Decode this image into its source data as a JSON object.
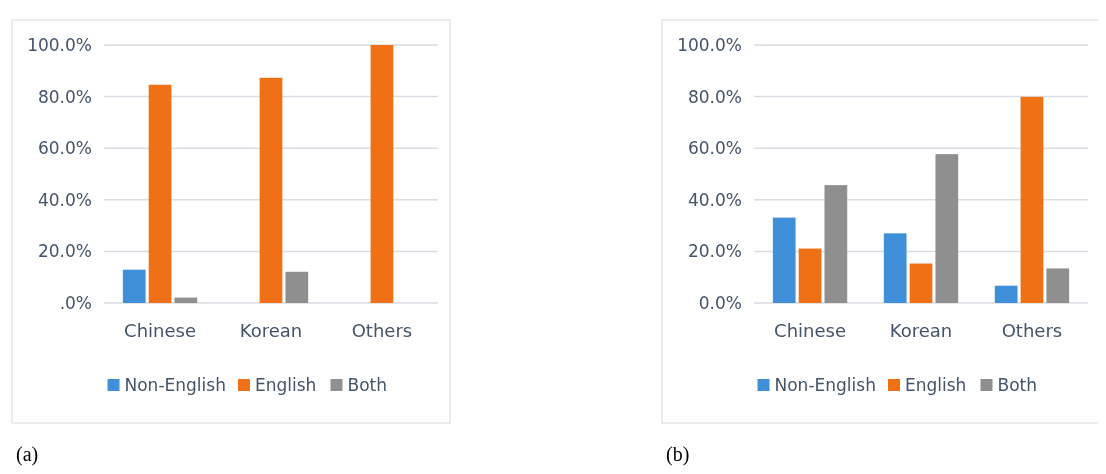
{
  "chart_data": [
    {
      "type": "bar",
      "categories": [
        "Chinese",
        "Korean",
        "Others"
      ],
      "series": [
        {
          "name": "Non-English",
          "color": "#3f8fd9",
          "values": [
            12.9,
            0,
            0
          ]
        },
        {
          "name": "English",
          "color": "#f07016",
          "values": [
            84.6,
            87.3,
            100
          ]
        },
        {
          "name": "Both",
          "color": "#8f8f8f",
          "values": [
            2.1,
            12.1,
            0
          ]
        }
      ],
      "ylim": [
        0,
        100
      ],
      "yticks": [
        {
          "value": 0,
          "label": ".0%"
        },
        {
          "value": 20,
          "label": "20.0%"
        },
        {
          "value": 40,
          "label": "40.0%"
        },
        {
          "value": 60,
          "label": "60.0%"
        },
        {
          "value": 80,
          "label": "80.0%"
        },
        {
          "value": 100,
          "label": "100.0%"
        }
      ],
      "grid": "y",
      "legend": "bottom",
      "annotations": [
        "(a)"
      ]
    },
    {
      "type": "bar",
      "categories": [
        "Chinese",
        "Korean",
        "Others"
      ],
      "series": [
        {
          "name": "Non-English",
          "color": "#3f8fd9",
          "values": [
            33.1,
            27.0,
            6.7
          ]
        },
        {
          "name": "English",
          "color": "#f07016",
          "values": [
            21.1,
            15.3,
            79.9
          ]
        },
        {
          "name": "Both",
          "color": "#8f8f8f",
          "values": [
            45.7,
            57.7,
            13.4
          ]
        }
      ],
      "ylim": [
        0,
        100
      ],
      "yticks": [
        {
          "value": 0,
          "label": "0.0%"
        },
        {
          "value": 20,
          "label": "20.0%"
        },
        {
          "value": 40,
          "label": "40.0%"
        },
        {
          "value": 60,
          "label": "60.0%"
        },
        {
          "value": 80,
          "label": "80.0%"
        },
        {
          "value": 100,
          "label": "100.0%"
        }
      ],
      "grid": "y",
      "legend": "bottom",
      "annotations": [
        "(b)"
      ]
    }
  ]
}
